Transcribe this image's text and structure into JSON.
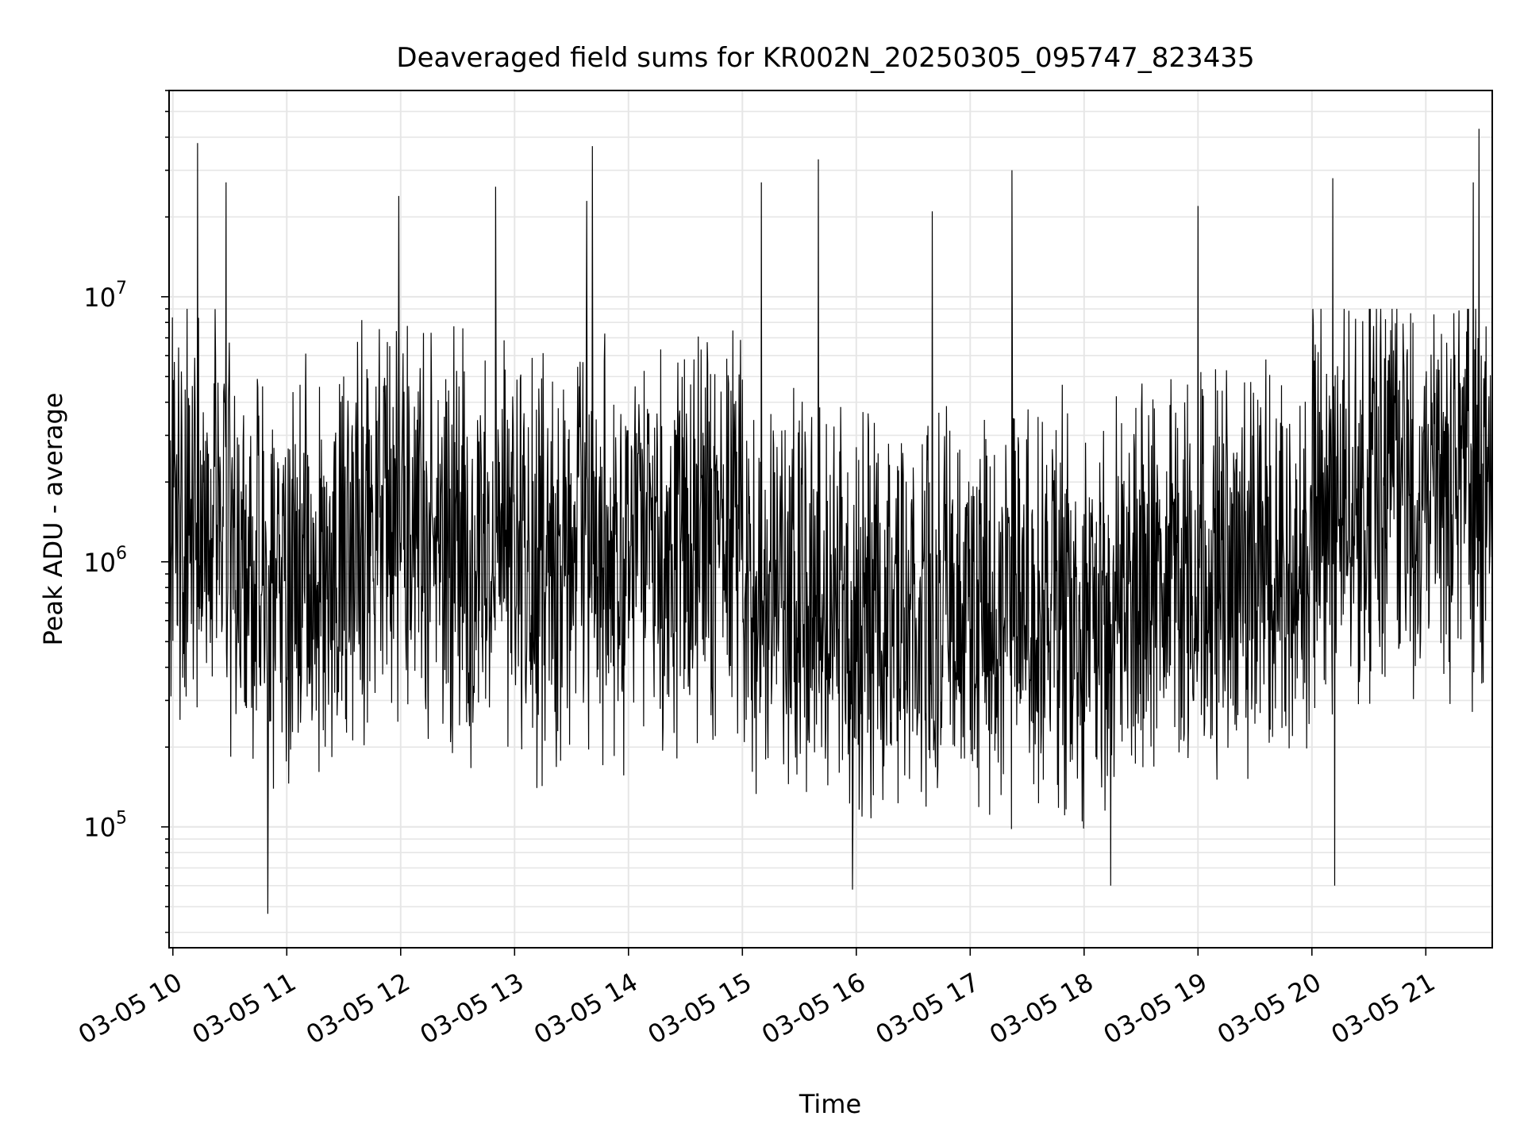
{
  "chart_data": {
    "type": "line",
    "title": "Deaveraged field sums for KR002N_20250305_095747_823435",
    "xlabel": "Time",
    "ylabel": "Peak ADU - average",
    "yscale": "log",
    "ylim": [
      35000,
      60000000
    ],
    "xlim": [
      "2025-03-05 09:58",
      "2025-03-05 21:35"
    ],
    "x_ticks": [
      "03-05 10",
      "03-05 11",
      "03-05 12",
      "03-05 13",
      "03-05 14",
      "03-05 15",
      "03-05 16",
      "03-05 17",
      "03-05 18",
      "03-05 19",
      "03-05 20",
      "03-05 21"
    ],
    "y_ticks": [
      {
        "base": "10",
        "exp": "5",
        "value": 100000
      },
      {
        "base": "10",
        "exp": "6",
        "value": 1000000
      },
      {
        "base": "10",
        "exp": "7",
        "value": 10000000
      }
    ],
    "grid": true,
    "line_color": "#000000",
    "grid_color": "#e6e6e6",
    "series": [
      {
        "start": "2025-03-05 09:58",
        "interval_minutes": 0.25,
        "segments": [
          {
            "end": "2025-03-05 10:30",
            "median": 1500000
          },
          {
            "end": "2025-03-05 11:30",
            "median": 900000
          },
          {
            "end": "2025-03-05 13:00",
            "median": 1200000
          },
          {
            "end": "2025-03-05 14:30",
            "median": 1000000
          },
          {
            "end": "2025-03-05 15:00",
            "median": 1300000
          },
          {
            "end": "2025-03-05 18:30",
            "median": 650000
          },
          {
            "end": "2025-03-05 20:00",
            "median": 900000
          },
          {
            "end": "2025-03-05 21:35",
            "median": 1800000
          }
        ],
        "spikes": [
          {
            "x": "2025-03-05 10:13",
            "y": 38000000
          },
          {
            "x": "2025-03-05 10:28",
            "y": 27000000
          },
          {
            "x": "2025-03-05 11:59",
            "y": 24000000
          },
          {
            "x": "2025-03-05 12:50",
            "y": 26000000
          },
          {
            "x": "2025-03-05 13:41",
            "y": 37000000
          },
          {
            "x": "2025-03-05 13:38",
            "y": 23000000
          },
          {
            "x": "2025-03-05 15:10",
            "y": 27000000
          },
          {
            "x": "2025-03-05 15:40",
            "y": 33000000
          },
          {
            "x": "2025-03-05 16:40",
            "y": 21000000
          },
          {
            "x": "2025-03-05 17:22",
            "y": 30000000
          },
          {
            "x": "2025-03-05 19:00",
            "y": 22000000
          },
          {
            "x": "2025-03-05 20:11",
            "y": 28000000
          },
          {
            "x": "2025-03-05 21:28",
            "y": 43000000
          },
          {
            "x": "2025-03-05 21:25",
            "y": 27000000
          }
        ],
        "dips": [
          {
            "x": "2025-03-05 10:50",
            "y": 47000.0
          },
          {
            "x": "2025-03-05 15:58",
            "y": 58000
          },
          {
            "x": "2025-03-05 18:14",
            "y": 60000
          },
          {
            "x": "2025-03-05 20:12",
            "y": 60000
          }
        ]
      }
    ]
  }
}
